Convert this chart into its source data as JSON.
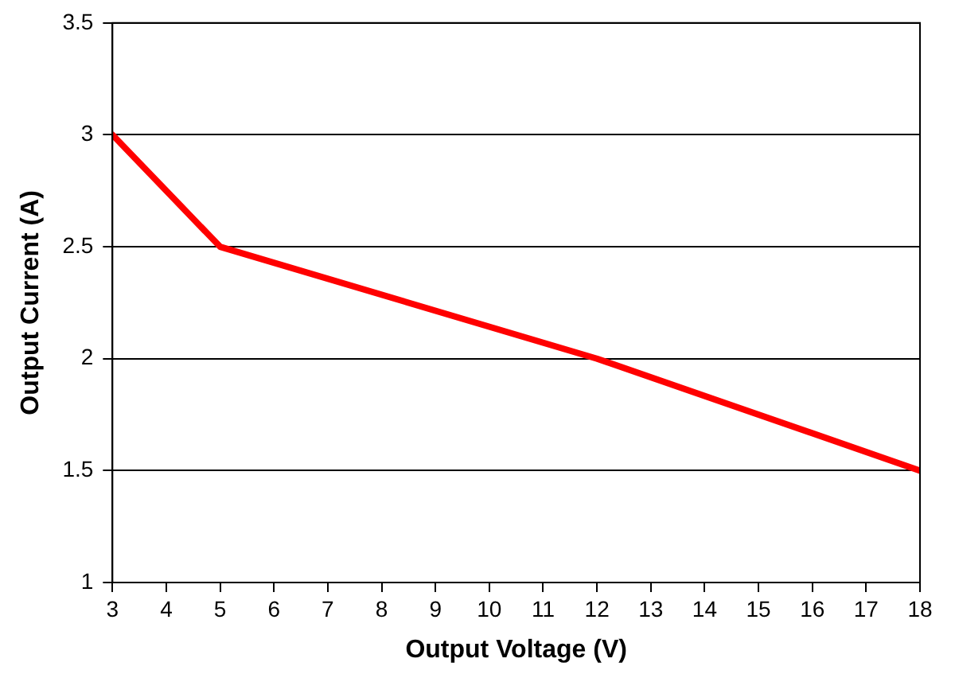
{
  "chart_data": {
    "type": "line",
    "xlabel": "Output Voltage (V)",
    "ylabel": "Output Current (A)",
    "x": [
      3,
      5,
      12,
      18
    ],
    "series": [
      {
        "color": "#ff0000",
        "values": [
          3,
          2.5,
          2,
          1.5
        ]
      }
    ],
    "xlim": [
      3,
      18
    ],
    "xticks": [
      3,
      4,
      5,
      6,
      7,
      8,
      9,
      10,
      11,
      12,
      13,
      14,
      15,
      16,
      17,
      18
    ],
    "ylim": [
      1,
      3.5
    ],
    "yticks": [
      1,
      1.5,
      2,
      2.5,
      3,
      3.5
    ],
    "grid": "y",
    "legend": false,
    "marker": "none",
    "line_style": "solid"
  }
}
